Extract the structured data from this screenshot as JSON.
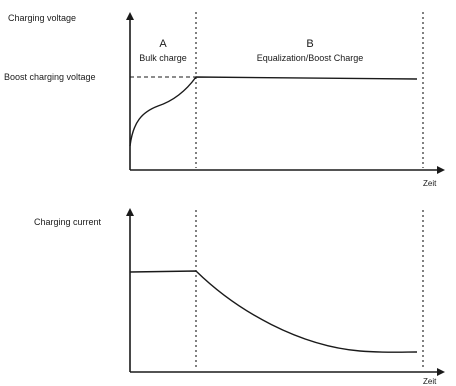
{
  "voltage_chart": {
    "y_axis_label": "Charging voltage",
    "level_label": "Boost charging voltage",
    "x_axis_label": "Zeit",
    "phase_a": {
      "letter": "A",
      "name": "Bulk charge"
    },
    "phase_b": {
      "letter": "B",
      "name": "Equalization/Boost Charge"
    }
  },
  "current_chart": {
    "y_axis_label": "Charging current",
    "x_axis_label": "Zeit"
  },
  "colors": {
    "line": "#1a1a1a",
    "background": "#ffffff"
  }
}
